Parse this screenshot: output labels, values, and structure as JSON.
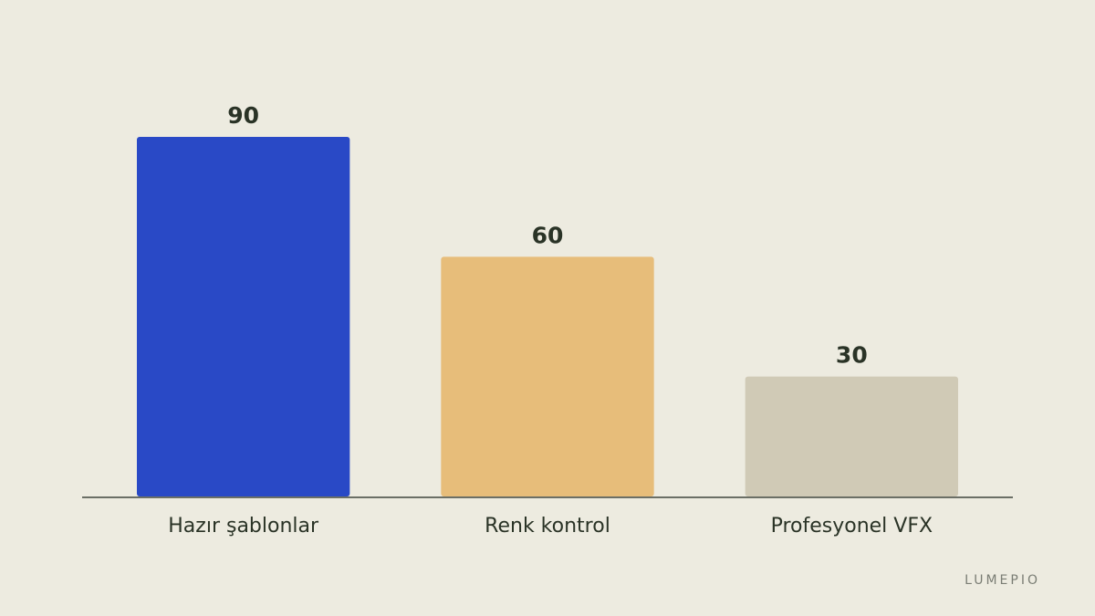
{
  "chart_data": {
    "type": "bar",
    "categories": [
      "Hazır şablonlar",
      "Renk kontrol",
      "Profesyonel VFX"
    ],
    "values": [
      90,
      60,
      30
    ],
    "colors": [
      "#2949c6",
      "#e7bd7a",
      "#d0cab6"
    ],
    "watermark": "LUMEPIO"
  }
}
